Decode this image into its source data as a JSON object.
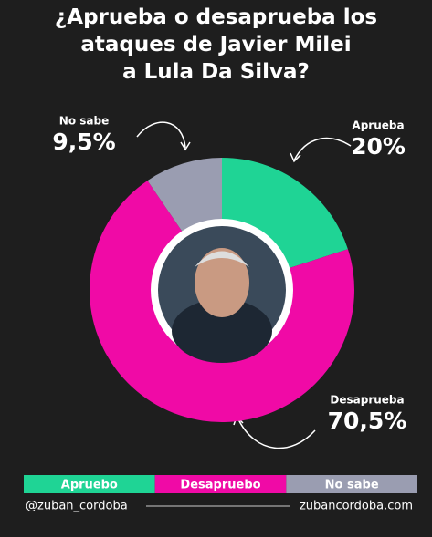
{
  "chart_data": {
    "type": "donut",
    "title": "¿Aprueba o desaprueba los\nataques de Javier Milei\na Lula Da Silva?",
    "categories": [
      "Aprueba",
      "Desaprueba",
      "No sabe"
    ],
    "values": [
      20,
      70.5,
      9.5
    ],
    "value_labels": [
      "20%",
      "70,5%",
      "9,5%"
    ],
    "colors": [
      "#1fd495",
      "#f00aa6",
      "#9a9db1"
    ],
    "legend": [
      "Apruebo",
      "Desapruebo",
      "No sabe"
    ],
    "footer": [
      "@zuban_cordoba",
      "zubancordoba.com"
    ]
  }
}
